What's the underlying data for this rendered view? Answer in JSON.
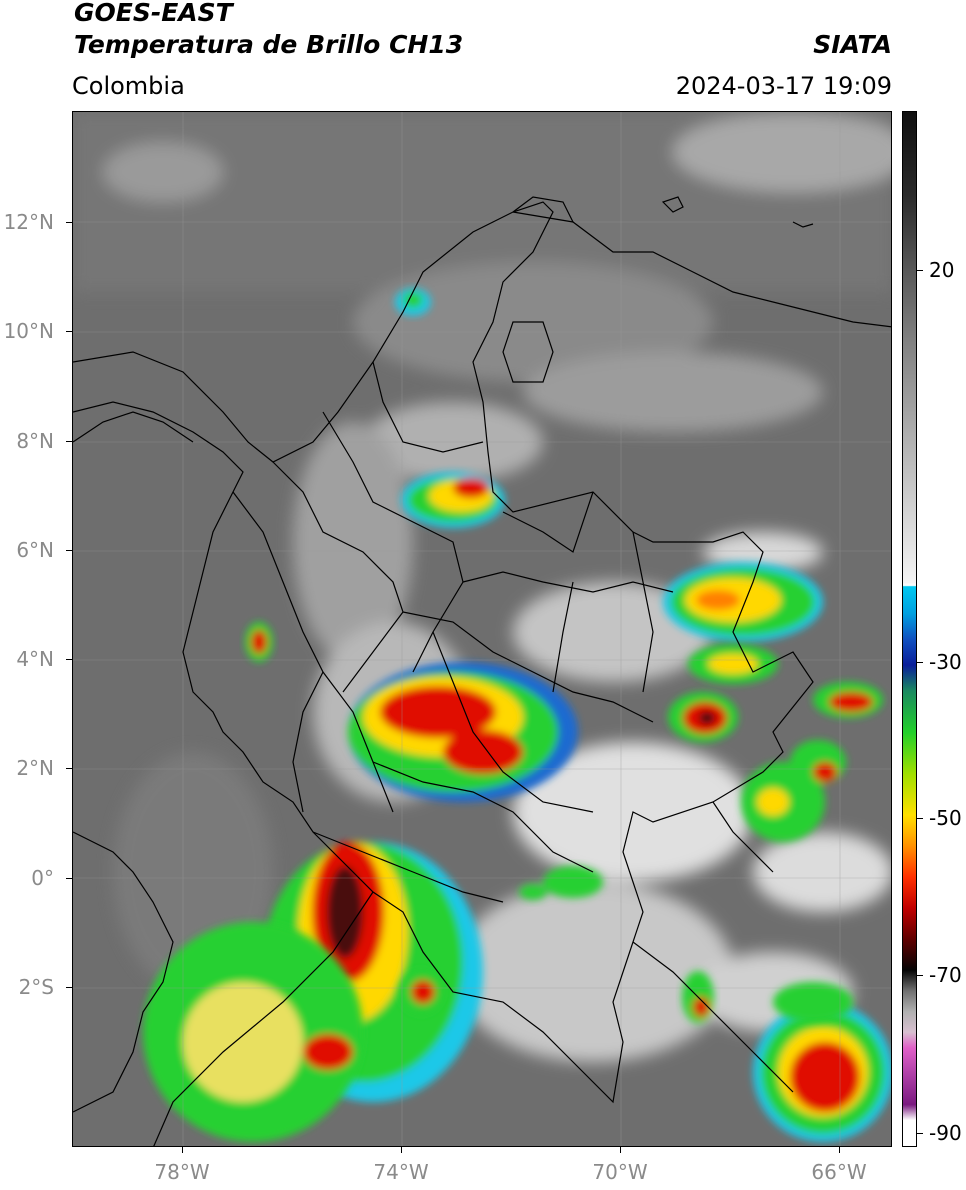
{
  "header": {
    "satellite": "GOES-EAST",
    "product": "Temperatura de Brillo CH13",
    "region": "Colombia",
    "agency": "SIATA",
    "timestamp": "2024-03-17 19:09"
  },
  "map": {
    "lat_ticks": [
      {
        "label": "12°N",
        "value": 12
      },
      {
        "label": "10°N",
        "value": 10
      },
      {
        "label": "8°N",
        "value": 8
      },
      {
        "label": "6°N",
        "value": 6
      },
      {
        "label": "4°N",
        "value": 4
      },
      {
        "label": "2°N",
        "value": 2
      },
      {
        "label": "0°",
        "value": 0
      },
      {
        "label": "2°S",
        "value": -2
      }
    ],
    "lon_ticks": [
      {
        "label": "78°W",
        "value": -78
      },
      {
        "label": "74°W",
        "value": -74
      },
      {
        "label": "70°W",
        "value": -70
      },
      {
        "label": "66°W",
        "value": -66
      }
    ]
  },
  "colorbar": {
    "labels": [
      {
        "text": "20",
        "value": 20
      },
      {
        "text": "-30",
        "value": -30
      },
      {
        "text": "-50",
        "value": -50
      },
      {
        "text": "-70",
        "value": -70
      },
      {
        "text": "-90",
        "value": -90
      }
    ],
    "colors": {
      "warm_gray": "#3a3a3a",
      "light_gray": "#f2f2f2",
      "cyan": "#00c8f0",
      "blue": "#0a1e9a",
      "green": "#22d02a",
      "yellow": "#ffe000",
      "red": "#e00000",
      "black": "#050505",
      "magenta": "#e060c8",
      "purple": "#7a1a80"
    }
  }
}
